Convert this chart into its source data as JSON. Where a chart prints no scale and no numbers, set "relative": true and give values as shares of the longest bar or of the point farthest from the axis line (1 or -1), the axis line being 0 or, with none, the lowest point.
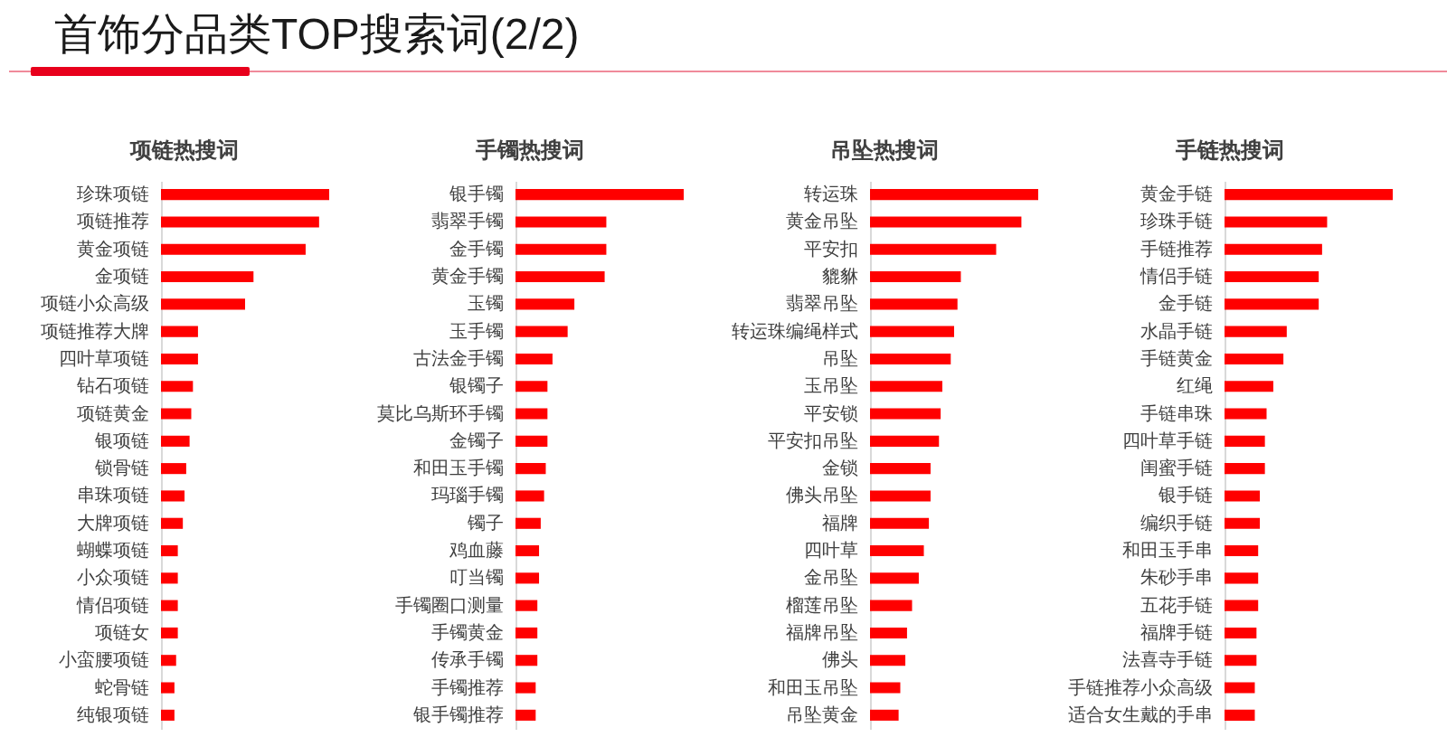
{
  "chart_data": [
    {
      "type": "other",
      "title": "首饰分品类TOP搜索词(2/2)"
    },
    {
      "type": "bar",
      "orientation": "horizontal",
      "relative": true,
      "title": "项链热搜词",
      "color": "#ff0000",
      "categories": [
        "珍珠项链",
        "项链推荐",
        "黄金项链",
        "金项链",
        "项链小众高级",
        "项链推荐大牌",
        "四叶草项链",
        "钻石项链",
        "项链黄金",
        "银项链",
        "锁骨链",
        "串珠项链",
        "大牌项链",
        "蝴蝶项链",
        "小众项链",
        "情侣项链",
        "项链女",
        "小蛮腰项链",
        "蛇骨链",
        "纯银项链"
      ],
      "values": [
        1,
        0.94,
        0.86,
        0.55,
        0.5,
        0.22,
        0.22,
        0.19,
        0.18,
        0.17,
        0.15,
        0.14,
        0.13,
        0.1,
        0.1,
        0.1,
        0.1,
        0.09,
        0.08,
        0.08
      ]
    },
    {
      "type": "bar",
      "orientation": "horizontal",
      "relative": true,
      "title": "手镯热搜词",
      "color": "#ff0000",
      "categories": [
        "银手镯",
        "翡翠手镯",
        "金手镯",
        "黄金手镯",
        "玉镯",
        "玉手镯",
        "古法金手镯",
        "银镯子",
        "莫比乌斯环手镯",
        "金镯子",
        "和田玉手镯",
        "玛瑙手镯",
        "镯子",
        "鸡血藤",
        "叮当镯",
        "手镯圈口测量",
        "手镯黄金",
        "传承手镯",
        "手镯推荐",
        "银手镯推荐"
      ],
      "values": [
        1,
        0.54,
        0.54,
        0.53,
        0.35,
        0.31,
        0.22,
        0.19,
        0.19,
        0.19,
        0.18,
        0.17,
        0.15,
        0.14,
        0.14,
        0.13,
        0.13,
        0.13,
        0.12,
        0.12
      ]
    },
    {
      "type": "bar",
      "orientation": "horizontal",
      "relative": true,
      "title": "吊坠热搜词",
      "color": "#ff0000",
      "categories": [
        "转运珠",
        "黄金吊坠",
        "平安扣",
        "貔貅",
        "翡翠吊坠",
        "转运珠编绳样式",
        "吊坠",
        "玉吊坠",
        "平安锁",
        "平安扣吊坠",
        "金锁",
        "佛头吊坠",
        "福牌",
        "四叶草",
        "金吊坠",
        "榴莲吊坠",
        "福牌吊坠",
        "佛头",
        "和田玉吊坠",
        "吊坠黄金"
      ],
      "values": [
        1,
        0.9,
        0.75,
        0.54,
        0.52,
        0.5,
        0.48,
        0.43,
        0.42,
        0.41,
        0.36,
        0.36,
        0.35,
        0.32,
        0.29,
        0.25,
        0.22,
        0.21,
        0.18,
        0.17
      ]
    },
    {
      "type": "bar",
      "orientation": "horizontal",
      "relative": true,
      "title": "手链热搜词",
      "color": "#ff0000",
      "categories": [
        "黄金手链",
        "珍珠手链",
        "手链推荐",
        "情侣手链",
        "金手链",
        "水晶手链",
        "手链黄金",
        "红绳",
        "手链串珠",
        "四叶草手链",
        "闺蜜手链",
        "银手链",
        "编织手链",
        "和田玉手串",
        "朱砂手串",
        "五花手链",
        "福牌手链",
        "法喜寺手链",
        "手链推荐小众高级",
        "适合女生戴的手串"
      ],
      "values": [
        1,
        0.61,
        0.58,
        0.56,
        0.56,
        0.37,
        0.35,
        0.29,
        0.25,
        0.24,
        0.24,
        0.21,
        0.21,
        0.2,
        0.2,
        0.2,
        0.19,
        0.19,
        0.18,
        0.18
      ]
    }
  ]
}
